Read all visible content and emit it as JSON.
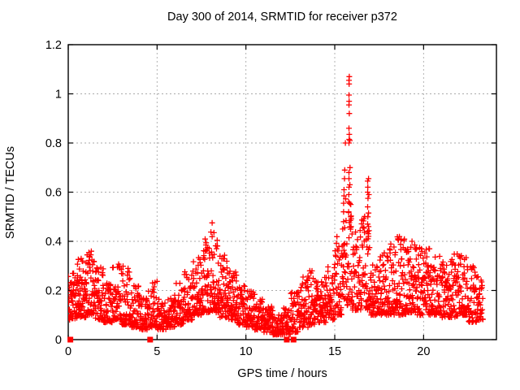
{
  "chart_data": {
    "type": "scatter",
    "title": "Day 300 of 2014, SRMTID for receiver p372",
    "xlabel": "GPS time / hours",
    "ylabel": "SRMTID / TECUs",
    "xlim": [
      0,
      24.1
    ],
    "ylim": [
      0,
      1.2
    ],
    "xticks": [
      [
        0,
        "0"
      ],
      [
        5,
        "5"
      ],
      [
        10,
        "10"
      ],
      [
        15,
        "15"
      ],
      [
        20,
        "20"
      ]
    ],
    "yticks": [
      [
        0,
        "0"
      ],
      [
        0.2,
        "0.2"
      ],
      [
        0.4,
        "0.4"
      ],
      [
        0.6,
        "0.6"
      ],
      [
        0.8,
        "0.8"
      ],
      [
        1,
        "1"
      ],
      [
        1.2,
        "1.2"
      ]
    ],
    "grid": true,
    "legend": "none",
    "marker": "plus",
    "marker_size": 7,
    "marker_color": "#ff0000",
    "grid_color": "#aaaaaa",
    "axis_color": "#000000",
    "background": "#ffffff",
    "envelope": [
      [
        0.0,
        0.5,
        0.08,
        0.28,
        55
      ],
      [
        0.5,
        1.0,
        0.09,
        0.33,
        60
      ],
      [
        1.0,
        1.5,
        0.1,
        0.36,
        60
      ],
      [
        1.5,
        2.0,
        0.08,
        0.31,
        55
      ],
      [
        2.0,
        2.5,
        0.07,
        0.23,
        50
      ],
      [
        2.5,
        3.0,
        0.08,
        0.34,
        50
      ],
      [
        3.0,
        3.5,
        0.06,
        0.3,
        50
      ],
      [
        3.5,
        4.0,
        0.05,
        0.22,
        48
      ],
      [
        4.0,
        4.5,
        0.04,
        0.18,
        48
      ],
      [
        4.5,
        5.0,
        0.05,
        0.24,
        48
      ],
      [
        5.0,
        5.5,
        0.04,
        0.17,
        48
      ],
      [
        5.5,
        6.0,
        0.05,
        0.19,
        48
      ],
      [
        6.0,
        6.5,
        0.06,
        0.23,
        50
      ],
      [
        6.5,
        7.0,
        0.08,
        0.28,
        52
      ],
      [
        7.0,
        7.5,
        0.1,
        0.34,
        55
      ],
      [
        7.5,
        8.0,
        0.11,
        0.41,
        58
      ],
      [
        8.0,
        8.5,
        0.11,
        0.44,
        58
      ],
      [
        8.5,
        9.0,
        0.09,
        0.35,
        55
      ],
      [
        9.0,
        9.5,
        0.08,
        0.28,
        52
      ],
      [
        9.5,
        10.0,
        0.06,
        0.22,
        52
      ],
      [
        10.0,
        10.5,
        0.05,
        0.2,
        50
      ],
      [
        10.5,
        11.0,
        0.04,
        0.17,
        50
      ],
      [
        11.0,
        11.5,
        0.03,
        0.14,
        48
      ],
      [
        11.5,
        12.0,
        0.02,
        0.12,
        46
      ],
      [
        12.0,
        12.5,
        0.02,
        0.13,
        44
      ],
      [
        12.5,
        13.0,
        0.03,
        0.2,
        46
      ],
      [
        13.0,
        13.5,
        0.05,
        0.26,
        48
      ],
      [
        13.5,
        14.0,
        0.06,
        0.28,
        48
      ],
      [
        14.0,
        14.5,
        0.07,
        0.26,
        50
      ],
      [
        14.5,
        15.0,
        0.08,
        0.31,
        50
      ],
      [
        15.0,
        15.5,
        0.1,
        0.42,
        52
      ],
      [
        15.5,
        16.0,
        0.14,
        0.6,
        52
      ],
      [
        16.0,
        16.5,
        0.12,
        0.45,
        50
      ],
      [
        16.5,
        17.0,
        0.12,
        0.52,
        50
      ],
      [
        17.0,
        17.5,
        0.1,
        0.31,
        50
      ],
      [
        17.5,
        18.0,
        0.1,
        0.36,
        50
      ],
      [
        18.0,
        18.5,
        0.1,
        0.4,
        50
      ],
      [
        18.5,
        19.0,
        0.1,
        0.42,
        50
      ],
      [
        19.0,
        19.5,
        0.11,
        0.4,
        50
      ],
      [
        19.5,
        20.0,
        0.1,
        0.38,
        50
      ],
      [
        20.0,
        20.5,
        0.1,
        0.37,
        50
      ],
      [
        20.5,
        21.0,
        0.1,
        0.34,
        50
      ],
      [
        21.0,
        21.5,
        0.09,
        0.32,
        50
      ],
      [
        21.5,
        22.0,
        0.09,
        0.35,
        50
      ],
      [
        22.0,
        22.5,
        0.1,
        0.35,
        50
      ],
      [
        22.5,
        23.0,
        0.07,
        0.3,
        46
      ],
      [
        23.0,
        23.35,
        0.08,
        0.28,
        30
      ]
    ],
    "peak_points": [
      [
        8.1,
        0.475
      ],
      [
        8.2,
        0.435
      ],
      [
        15.45,
        0.45
      ],
      [
        15.5,
        0.48
      ],
      [
        15.5,
        0.52
      ],
      [
        15.5,
        0.555
      ],
      [
        15.52,
        0.585
      ],
      [
        15.52,
        0.61
      ],
      [
        15.55,
        0.655
      ],
      [
        15.56,
        0.69
      ],
      [
        15.6,
        0.8
      ],
      [
        15.78,
        0.52
      ],
      [
        15.78,
        0.56
      ],
      [
        15.79,
        0.59
      ],
      [
        15.8,
        0.62
      ],
      [
        15.8,
        0.655
      ],
      [
        15.8,
        0.68
      ],
      [
        15.8,
        0.8
      ],
      [
        15.81,
        0.815
      ],
      [
        15.82,
        0.835
      ],
      [
        15.8,
        0.86
      ],
      [
        15.82,
        0.92
      ],
      [
        15.8,
        0.955
      ],
      [
        15.81,
        0.97
      ],
      [
        15.8,
        0.995
      ],
      [
        15.81,
        1.04
      ],
      [
        15.8,
        1.055
      ],
      [
        15.82,
        1.07
      ],
      [
        15.85,
        0.81
      ],
      [
        15.86,
        0.7
      ],
      [
        15.85,
        0.63
      ],
      [
        15.9,
        0.55
      ],
      [
        15.9,
        0.5
      ],
      [
        15.92,
        0.46
      ],
      [
        16.85,
        0.44
      ],
      [
        16.85,
        0.47
      ],
      [
        16.86,
        0.5
      ],
      [
        16.85,
        0.54
      ],
      [
        16.87,
        0.575
      ],
      [
        16.85,
        0.6
      ],
      [
        16.86,
        0.62
      ],
      [
        16.85,
        0.645
      ],
      [
        16.9,
        0.42
      ],
      [
        16.9,
        0.46
      ],
      [
        16.9,
        0.515
      ],
      [
        16.92,
        0.59
      ],
      [
        16.9,
        0.655
      ],
      [
        18.55,
        0.41
      ],
      [
        19.35,
        0.4
      ],
      [
        19.5,
        0.385
      ],
      [
        20.3,
        0.37
      ]
    ],
    "zero_flag_hours": [
      0.12,
      4.61,
      12.3,
      12.68
    ]
  }
}
